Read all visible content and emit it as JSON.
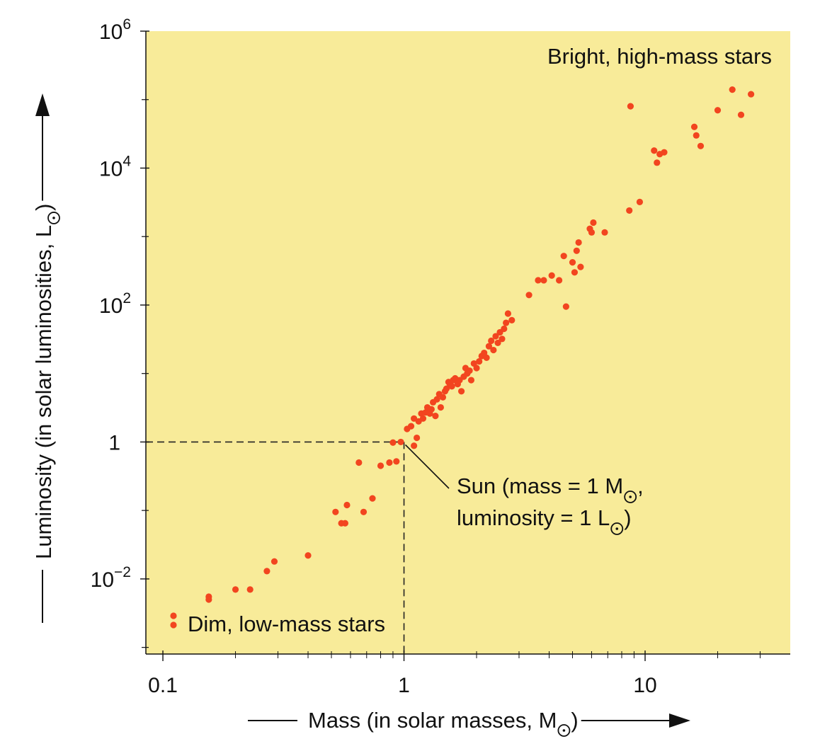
{
  "chart_data": {
    "type": "scatter",
    "x_scale": "log",
    "y_scale": "log",
    "xlim": [
      0.085,
      40
    ],
    "ylim": [
      0.0008,
      1000000
    ],
    "grid": false,
    "background_color": "#f8eb99",
    "point_color": "#f2451f",
    "x_ticks": [
      {
        "value": 0.1,
        "label": "0.1"
      },
      {
        "value": 1,
        "label": "1"
      },
      {
        "value": 10,
        "label": "10"
      }
    ],
    "x_minor_ticks": [
      0.2,
      0.3,
      0.4,
      0.5,
      0.6,
      0.7,
      0.8,
      0.9,
      2,
      3,
      4,
      5,
      6,
      7,
      8,
      9,
      20,
      30
    ],
    "y_ticks": [
      {
        "value": 1000000,
        "base": "10",
        "exp": "6"
      },
      {
        "value": 10000,
        "base": "10",
        "exp": "4"
      },
      {
        "value": 100,
        "base": "10",
        "exp": "2"
      },
      {
        "value": 1,
        "base": "1",
        "exp": ""
      },
      {
        "value": 0.01,
        "base": "10",
        "exp": "−2"
      }
    ],
    "y_minor_ticks": [
      100000,
      1000,
      10,
      0.1,
      0.001
    ],
    "xlabel": {
      "text": "Mass (in solar masses, M",
      "tail": ")"
    },
    "ylabel": {
      "text": "Luminosity (in solar luminosities, L",
      "tail": ")"
    },
    "annotations": {
      "bright": "Bright, high-mass stars",
      "dim": "Dim, low-mass stars",
      "sun_line1": "Sun (mass = 1 M",
      "sun_line1_tail": ",",
      "sun_line2": "luminosity = 1 L",
      "sun_line2_tail": ")"
    },
    "sun_point": {
      "x": 1,
      "y": 1
    },
    "series": [
      {
        "points": [
          [
            0.155,
            0.0055
          ],
          [
            0.155,
            0.005
          ],
          [
            0.2,
            0.007
          ],
          [
            0.23,
            0.007
          ],
          [
            0.27,
            0.013
          ],
          [
            0.29,
            0.018
          ],
          [
            0.4,
            0.022
          ],
          [
            0.52,
            0.095
          ],
          [
            0.55,
            0.065
          ],
          [
            0.57,
            0.065
          ],
          [
            0.58,
            0.12
          ],
          [
            0.65,
            0.5
          ],
          [
            0.68,
            0.095
          ],
          [
            0.74,
            0.15
          ],
          [
            0.8,
            0.45
          ],
          [
            0.87,
            0.5
          ],
          [
            0.9,
            0.98
          ],
          [
            0.93,
            0.52
          ],
          [
            0.97,
            1.0
          ],
          [
            1.03,
            1.55
          ],
          [
            1.07,
            1.7
          ],
          [
            1.1,
            0.88
          ],
          [
            1.1,
            2.2
          ],
          [
            1.13,
            1.15
          ],
          [
            1.15,
            2.0
          ],
          [
            1.18,
            2.6
          ],
          [
            1.2,
            2.2
          ],
          [
            1.23,
            2.7
          ],
          [
            1.25,
            3.2
          ],
          [
            1.28,
            2.6
          ],
          [
            1.3,
            3.0
          ],
          [
            1.32,
            3.8
          ],
          [
            1.35,
            2.4
          ],
          [
            1.37,
            4.2
          ],
          [
            1.4,
            5.0
          ],
          [
            1.42,
            3.2
          ],
          [
            1.45,
            4.5
          ],
          [
            1.48,
            5.5
          ],
          [
            1.5,
            6.0
          ],
          [
            1.53,
            7.5
          ],
          [
            1.55,
            7.0
          ],
          [
            1.58,
            6.5
          ],
          [
            1.6,
            8.0
          ],
          [
            1.63,
            8.5
          ],
          [
            1.67,
            7.0
          ],
          [
            1.7,
            8.0
          ],
          [
            1.73,
            5.5
          ],
          [
            1.77,
            9.0
          ],
          [
            1.8,
            12.0
          ],
          [
            1.83,
            10.0
          ],
          [
            1.87,
            11.0
          ],
          [
            1.9,
            8.0
          ],
          [
            1.95,
            14.0
          ],
          [
            2.0,
            12.0
          ],
          [
            2.05,
            15.0
          ],
          [
            2.1,
            18.0
          ],
          [
            2.15,
            20.0
          ],
          [
            2.2,
            17.0
          ],
          [
            2.25,
            25.0
          ],
          [
            2.3,
            30.0
          ],
          [
            2.35,
            22.0
          ],
          [
            2.4,
            35.0
          ],
          [
            2.45,
            28.0
          ],
          [
            2.5,
            40.0
          ],
          [
            2.55,
            32.0
          ],
          [
            2.6,
            45.0
          ],
          [
            2.65,
            55.0
          ],
          [
            2.7,
            75.0
          ],
          [
            2.8,
            60.0
          ],
          [
            3.3,
            140.0
          ],
          [
            3.6,
            230.0
          ],
          [
            3.8,
            230.0
          ],
          [
            4.1,
            270.0
          ],
          [
            4.4,
            230.0
          ],
          [
            4.7,
            95.0
          ],
          [
            4.6,
            520.0
          ],
          [
            5.0,
            420.0
          ],
          [
            5.2,
            620.0
          ],
          [
            5.3,
            820.0
          ],
          [
            5.1,
            300.0
          ],
          [
            5.4,
            360.0
          ],
          [
            5.9,
            1300.0
          ],
          [
            6.0,
            1150.0
          ],
          [
            6.1,
            1600.0
          ],
          [
            6.8,
            1150.0
          ],
          [
            8.6,
            2400.0
          ],
          [
            9.5,
            3200.0
          ],
          [
            8.7,
            80000.0
          ],
          [
            10.9,
            18000.0
          ],
          [
            11.2,
            12000.0
          ],
          [
            11.5,
            16000.0
          ],
          [
            12.0,
            17000.0
          ],
          [
            16.0,
            40000.0
          ],
          [
            16.3,
            30000.0
          ],
          [
            17.0,
            21000.0
          ],
          [
            20.0,
            70000.0
          ],
          [
            23.0,
            140000.0
          ],
          [
            25.0,
            60000.0
          ],
          [
            27.5,
            120000.0
          ]
        ]
      }
    ]
  }
}
